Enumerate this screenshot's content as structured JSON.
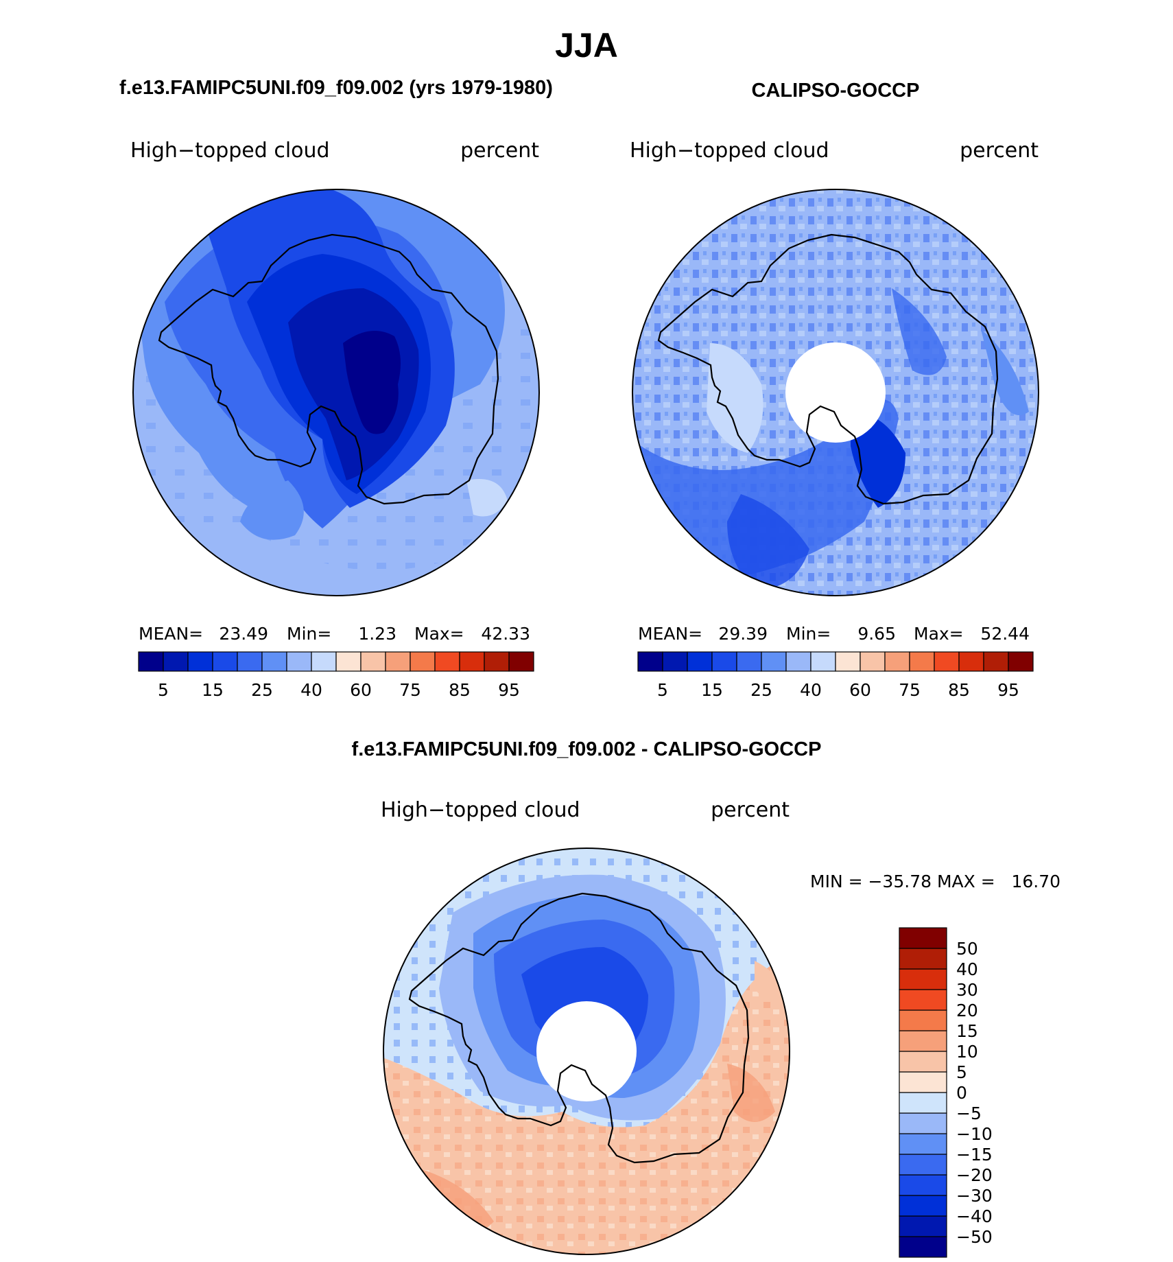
{
  "figure": {
    "season": "JJA",
    "panels": [
      {
        "id": "model",
        "header": "f.e13.FAMIPC5UNI.f09_f09.002 (yrs 1979-1980)",
        "variable": "High−topped cloud",
        "units": "percent",
        "stats": {
          "mean_label": "MEAN=",
          "mean": "23.49",
          "min_label": "Min=",
          "min": "1.23",
          "max_label": "Max=",
          "max": "42.33"
        }
      },
      {
        "id": "obs",
        "header": "CALIPSO-GOCCP",
        "variable": "High−topped cloud",
        "units": "percent",
        "stats": {
          "mean_label": "MEAN=",
          "mean": "29.39",
          "min_label": "Min=",
          "min": "9.65",
          "max_label": "Max=",
          "max": "52.44"
        }
      },
      {
        "id": "diff",
        "header": "f.e13.FAMIPC5UNI.f09_f09.002 - CALIPSO-GOCCP",
        "variable": "High−topped cloud",
        "units": "percent",
        "stats": {
          "text": "MIN = −35.78 MAX =   16.70"
        }
      }
    ],
    "abs_colorbar": {
      "colors": [
        "#00008b",
        "#0018b0",
        "#0030d8",
        "#1a4ae8",
        "#3a6af0",
        "#6090f5",
        "#9ab8f8",
        "#c6dafc",
        "#fce4d4",
        "#f8c4a8",
        "#f6a07a",
        "#f47a4a",
        "#f04a22",
        "#d82e0c",
        "#b01e06",
        "#800000"
      ],
      "tick_labels": [
        "5",
        "15",
        "25",
        "40",
        "60",
        "75",
        "85",
        "95"
      ]
    },
    "diff_colorbar": {
      "colors_bottom_to_top": [
        "#00008b",
        "#0018b0",
        "#0030d8",
        "#1a4ae8",
        "#3a6af0",
        "#6090f5",
        "#9ab8f8",
        "#cfe4fb",
        "#fce4d4",
        "#f8c4a8",
        "#f6a07a",
        "#f47a4a",
        "#f04a22",
        "#d82e0c",
        "#b01e06",
        "#800000"
      ],
      "tick_labels_top_to_bottom": [
        "50",
        "40",
        "30",
        "20",
        "15",
        "10",
        "5",
        "0",
        "−5",
        "−10",
        "−15",
        "−20",
        "−30",
        "−40",
        "−50"
      ]
    }
  }
}
